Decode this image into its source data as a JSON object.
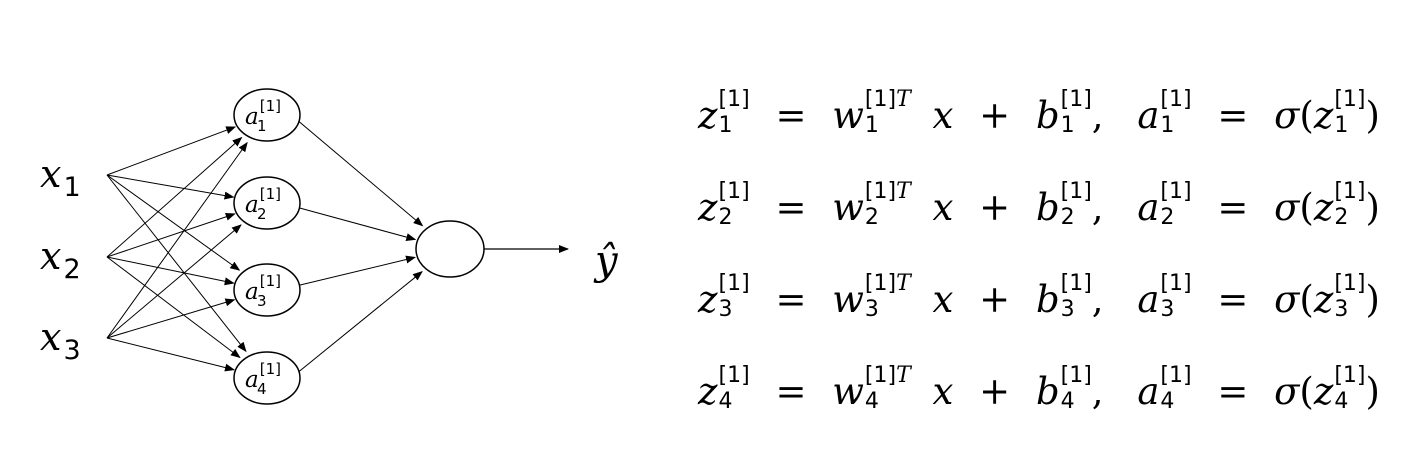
{
  "diagram": {
    "inputs": [
      {
        "var": "x",
        "sub": "1"
      },
      {
        "var": "x",
        "sub": "2"
      },
      {
        "var": "x",
        "sub": "3"
      }
    ],
    "hidden_units": [
      {
        "var": "a",
        "sup": "[1]",
        "sub": "1"
      },
      {
        "var": "a",
        "sup": "[1]",
        "sub": "2"
      },
      {
        "var": "a",
        "sup": "[1]",
        "sub": "3"
      },
      {
        "var": "a",
        "sup": "[1]",
        "sub": "4"
      }
    ],
    "output_label": "ŷ"
  },
  "equations": [
    {
      "z": "z",
      "w": "w",
      "x": "x",
      "b": "b",
      "a": "a",
      "sigma": "σ",
      "layer": "[1]",
      "transpose": "T",
      "index": "1",
      "eq": "=",
      "plus": "+",
      "comma": ",",
      "lparen": "(",
      "rparen": ")"
    },
    {
      "z": "z",
      "w": "w",
      "x": "x",
      "b": "b",
      "a": "a",
      "sigma": "σ",
      "layer": "[1]",
      "transpose": "T",
      "index": "2",
      "eq": "=",
      "plus": "+",
      "comma": ",",
      "lparen": "(",
      "rparen": ")"
    },
    {
      "z": "z",
      "w": "w",
      "x": "x",
      "b": "b",
      "a": "a",
      "sigma": "σ",
      "layer": "[1]",
      "transpose": "T",
      "index": "3",
      "eq": "=",
      "plus": "+",
      "comma": ",",
      "lparen": "(",
      "rparen": ")"
    },
    {
      "z": "z",
      "w": "w",
      "x": "x",
      "b": "b",
      "a": "a",
      "sigma": "σ",
      "layer": "[1]",
      "transpose": "T",
      "index": "4",
      "eq": "=",
      "plus": "+",
      "comma": ",",
      "lparen": "(",
      "rparen": ")"
    }
  ]
}
